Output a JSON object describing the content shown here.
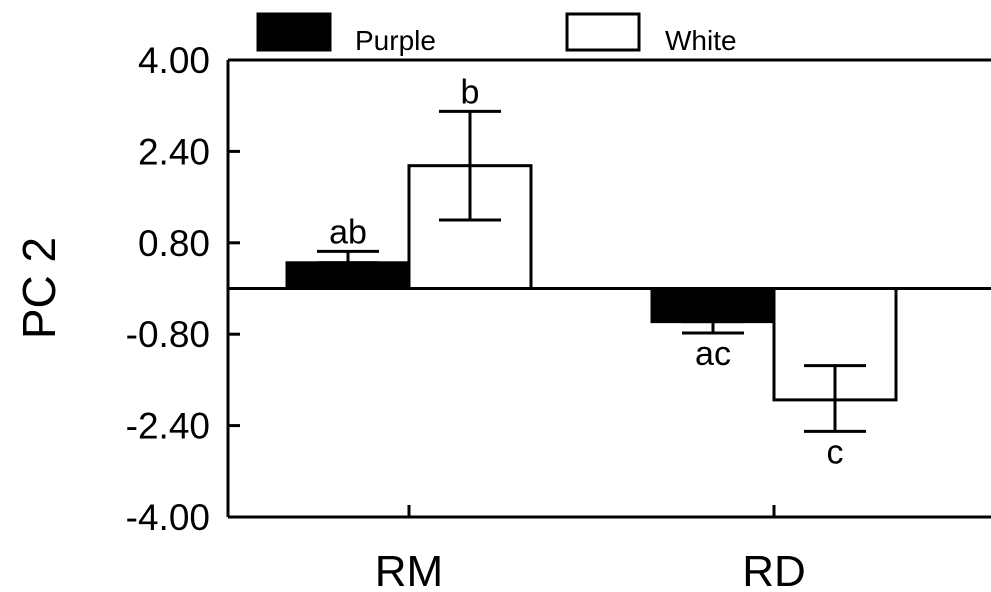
{
  "chart_data": {
    "type": "bar",
    "title": "",
    "xlabel": "",
    "ylabel": "PC 2",
    "ylim": [
      -4.0,
      4.0
    ],
    "yticks": [
      4.0,
      2.4,
      0.8,
      -0.8,
      -2.4,
      -4.0
    ],
    "ytick_labels": [
      "4.00",
      "2.40",
      "0.80",
      "-0.80",
      "-2.40",
      "-4.00"
    ],
    "categories": [
      "RM",
      "RD"
    ],
    "series": [
      {
        "name": "Purple",
        "color": "#000000",
        "values": [
          0.45,
          -0.58
        ],
        "error_low": [
          0.45,
          -0.78
        ],
        "error_high": [
          0.65,
          -0.58
        ],
        "labels": [
          "ab",
          "ac"
        ]
      },
      {
        "name": "White",
        "color": "#ffffff",
        "values": [
          2.15,
          -1.95
        ],
        "error_low": [
          1.2,
          -2.5
        ],
        "error_high": [
          3.1,
          -1.35
        ],
        "labels": [
          "b",
          "c"
        ]
      }
    ],
    "legend_position": "top",
    "grid": false
  }
}
